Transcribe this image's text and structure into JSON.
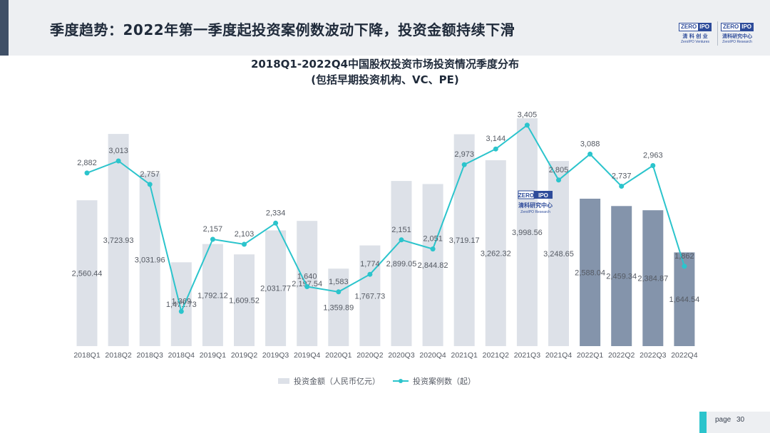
{
  "header": {
    "title": "季度趋势：2022年第一季度起投资案例数波动下降，投资金额持续下滑"
  },
  "logos": {
    "left": {
      "zero": "ZERO",
      "ipo": "IPO",
      "cn": "清 科 创 业",
      "en": "ZeroIPO Ventures"
    },
    "right": {
      "zero": "ZERO",
      "ipo": "IPO",
      "cn": "清科研究中心",
      "en": "ZeroIPO Research"
    },
    "watermark": {
      "zero": "ZERO",
      "ipo": "IPO",
      "cn": "清科研究中心",
      "en": "ZeroIPO Research"
    }
  },
  "chart_title": {
    "line1": "2018Q1-2022Q4中国股权投资市场投资情况季度分布",
    "line2": "(包括早期投资机构、VC、PE)"
  },
  "chart_data": {
    "type": "bar",
    "categories": [
      "2018Q1",
      "2018Q2",
      "2018Q3",
      "2018Q4",
      "2019Q1",
      "2019Q2",
      "2019Q3",
      "2019Q4",
      "2020Q1",
      "2020Q2",
      "2020Q3",
      "2020Q4",
      "2021Q1",
      "2021Q2",
      "2021Q3",
      "2021Q4",
      "2022Q1",
      "2022Q2",
      "2022Q3",
      "2022Q4"
    ],
    "series": [
      {
        "name": "投资金额（人民币亿元）",
        "type": "bar",
        "values": [
          2560.44,
          3723.93,
          3031.96,
          1471.73,
          1792.12,
          1609.52,
          2031.77,
          2197.54,
          1359.89,
          1767.73,
          2899.05,
          2844.82,
          3719.17,
          3262.32,
          3998.56,
          3248.65,
          2588.04,
          2459.34,
          2384.87,
          1644.54
        ],
        "labels": [
          "2,560.44",
          "3,723.93",
          "3,031.96",
          "1,471.73",
          "1,792.12",
          "1,609.52",
          "2,031.77",
          "2,197.54",
          "1,359.89",
          "1,767.73",
          "2,899.05",
          "2,844.82",
          "3,719.17",
          "3,262.32",
          "3,998.56",
          "3,248.65",
          "2,588.04",
          "2,459.34",
          "2,384.87",
          "1,644.54"
        ]
      },
      {
        "name": "投资案例数（起）",
        "type": "line",
        "values": [
          2882,
          3013,
          2757,
          1369,
          2157,
          2103,
          2334,
          1640,
          1583,
          1774,
          2151,
          2051,
          2973,
          3144,
          3405,
          2805,
          3088,
          2737,
          2963,
          1862
        ],
        "labels": [
          "2,882",
          "3,013",
          "2,757",
          "1,369",
          "2,157",
          "2,103",
          "2,334",
          "1,640",
          "1,583",
          "1,774",
          "2,151",
          "2,051",
          "2,973",
          "3,144",
          "3,405",
          "2,805",
          "3,088",
          "2,737",
          "2,963",
          "1,862"
        ]
      }
    ],
    "highlight_from_index": 16,
    "colors": {
      "bar": "#dde1e8",
      "bar_highlight": "#8494ab",
      "line": "#2bc4cc"
    },
    "legend_position": "bottom"
  },
  "page": {
    "label": "page",
    "number": "30"
  }
}
